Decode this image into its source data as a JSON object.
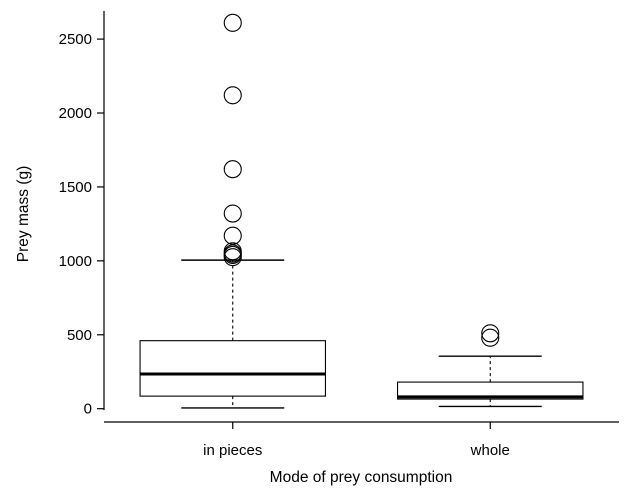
{
  "chart_data": {
    "type": "box",
    "title": "",
    "xlabel": "Mode of prey consumption",
    "ylabel": "Prey mass (g)",
    "categories": [
      "in pieces",
      "whole"
    ],
    "ylim": [
      -90,
      2690
    ],
    "yticks": [
      0,
      500,
      1000,
      1500,
      2000,
      2500
    ],
    "grid": false,
    "legend": "none",
    "series": [
      {
        "category": "in pieces",
        "whisker_low": 5,
        "q1": 85,
        "median": 235,
        "q3": 460,
        "whisker_high": 1005,
        "outliers": [
          1025,
          1040,
          1050,
          1065,
          1170,
          1320,
          1620,
          2120,
          2610
        ]
      },
      {
        "category": "whole",
        "whisker_low": 15,
        "q1": 65,
        "median": 80,
        "q3": 180,
        "whisker_high": 355,
        "outliers": [
          480,
          510
        ]
      }
    ]
  }
}
